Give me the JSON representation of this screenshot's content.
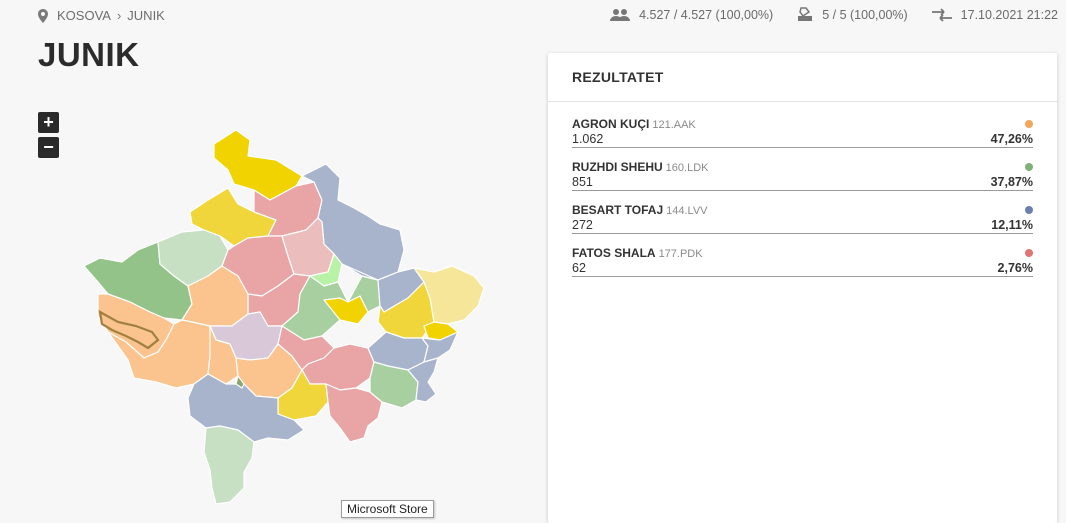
{
  "breadcrumb": {
    "root": "KOSOVA",
    "current": "JUNIK"
  },
  "stats": {
    "voters": "4.527 / 4.527 (100,00%)",
    "stations": "5 / 5 (100,00%)",
    "updated": "17.10.2021 21:22"
  },
  "page_title": "JUNIK",
  "zoom": {
    "in_label": "+",
    "out_label": "−"
  },
  "tooltip": "Microsoft Store",
  "panel": {
    "title": "REZULTATET",
    "candidates": [
      {
        "name": "AGRON KUÇI",
        "party": "121.AAK",
        "votes": "1.062",
        "percent": "47,26%",
        "color": "#f5a55a"
      },
      {
        "name": "RUZHDI SHEHU",
        "party": "160.LDK",
        "votes": "851",
        "percent": "37,87%",
        "color": "#7fb27a"
      },
      {
        "name": "BESART TOFAJ",
        "party": "144.LVV",
        "votes": "272",
        "percent": "12,11%",
        "color": "#6a7fb0"
      },
      {
        "name": "FATOS SHALA",
        "party": "177.PDK",
        "votes": "62",
        "percent": "2,76%",
        "color": "#e07575"
      }
    ]
  },
  "colors": {
    "aak": "#fbc48e",
    "ldk": "#a8cfa0",
    "lvv": "#a8b4cc",
    "pdk": "#e9a5a5",
    "akr": "#f0d63a",
    "srb": "#c7dfc2"
  }
}
